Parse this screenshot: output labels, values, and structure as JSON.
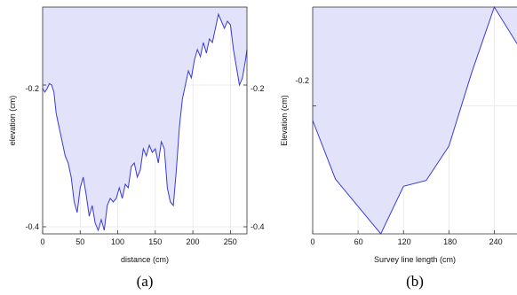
{
  "colors": {
    "line": "#3a3ad8",
    "fill": "#e2e2fa",
    "axis": "#333333",
    "grid": "#e6e6e6"
  },
  "chart_data": [
    {
      "type": "area",
      "xlabel": "distance (cm)",
      "ylabel": "elevation (cm)",
      "xlim": [
        0,
        272
      ],
      "ylim": [
        -0.41,
        -0.09
      ],
      "xticks": [
        "0",
        "50",
        "100",
        "150",
        "200",
        "250"
      ],
      "yticks_left": [
        "-0.2",
        "-0.4"
      ],
      "yticks_right": [
        "-0.2",
        "-0.4"
      ],
      "grid": true,
      "caption": "(a)",
      "x": [
        0,
        3,
        6,
        9,
        12,
        15,
        18,
        22,
        26,
        30,
        34,
        38,
        42,
        46,
        50,
        54,
        58,
        62,
        66,
        70,
        74,
        78,
        82,
        86,
        90,
        94,
        98,
        102,
        106,
        110,
        114,
        118,
        122,
        126,
        130,
        134,
        138,
        142,
        146,
        150,
        154,
        158,
        162,
        166,
        170,
        174,
        178,
        182,
        186,
        190,
        194,
        198,
        202,
        206,
        210,
        214,
        218,
        222,
        226,
        230,
        234,
        238,
        242,
        246,
        250,
        254,
        258,
        262,
        266,
        270,
        272
      ],
      "y": [
        -0.205,
        -0.21,
        -0.205,
        -0.198,
        -0.2,
        -0.21,
        -0.24,
        -0.26,
        -0.28,
        -0.3,
        -0.31,
        -0.33,
        -0.365,
        -0.38,
        -0.345,
        -0.33,
        -0.355,
        -0.385,
        -0.37,
        -0.395,
        -0.405,
        -0.39,
        -0.405,
        -0.37,
        -0.36,
        -0.365,
        -0.36,
        -0.345,
        -0.36,
        -0.34,
        -0.345,
        -0.315,
        -0.31,
        -0.33,
        -0.32,
        -0.29,
        -0.3,
        -0.285,
        -0.295,
        -0.29,
        -0.31,
        -0.28,
        -0.29,
        -0.345,
        -0.365,
        -0.37,
        -0.32,
        -0.26,
        -0.22,
        -0.2,
        -0.18,
        -0.19,
        -0.165,
        -0.15,
        -0.16,
        -0.14,
        -0.155,
        -0.135,
        -0.14,
        -0.12,
        -0.1,
        -0.11,
        -0.12,
        -0.11,
        -0.115,
        -0.15,
        -0.175,
        -0.2,
        -0.19,
        -0.165,
        -0.15
      ]
    },
    {
      "type": "area",
      "xlabel": "Survey line length (cm)",
      "ylabel": "Elevation (cm)",
      "xlim": [
        0,
        270
      ],
      "ylim": [
        -0.375,
        -0.065
      ],
      "xticks": [
        "0",
        "60",
        "120",
        "180",
        "240"
      ],
      "yticks": [
        "-0.2"
      ],
      "grid": true,
      "caption": "(b)",
      "x": [
        0,
        30,
        90,
        120,
        150,
        180,
        210,
        240,
        270
      ],
      "y": [
        -0.22,
        -0.3,
        -0.375,
        -0.31,
        -0.302,
        -0.255,
        -0.155,
        -0.065,
        -0.115
      ]
    }
  ]
}
